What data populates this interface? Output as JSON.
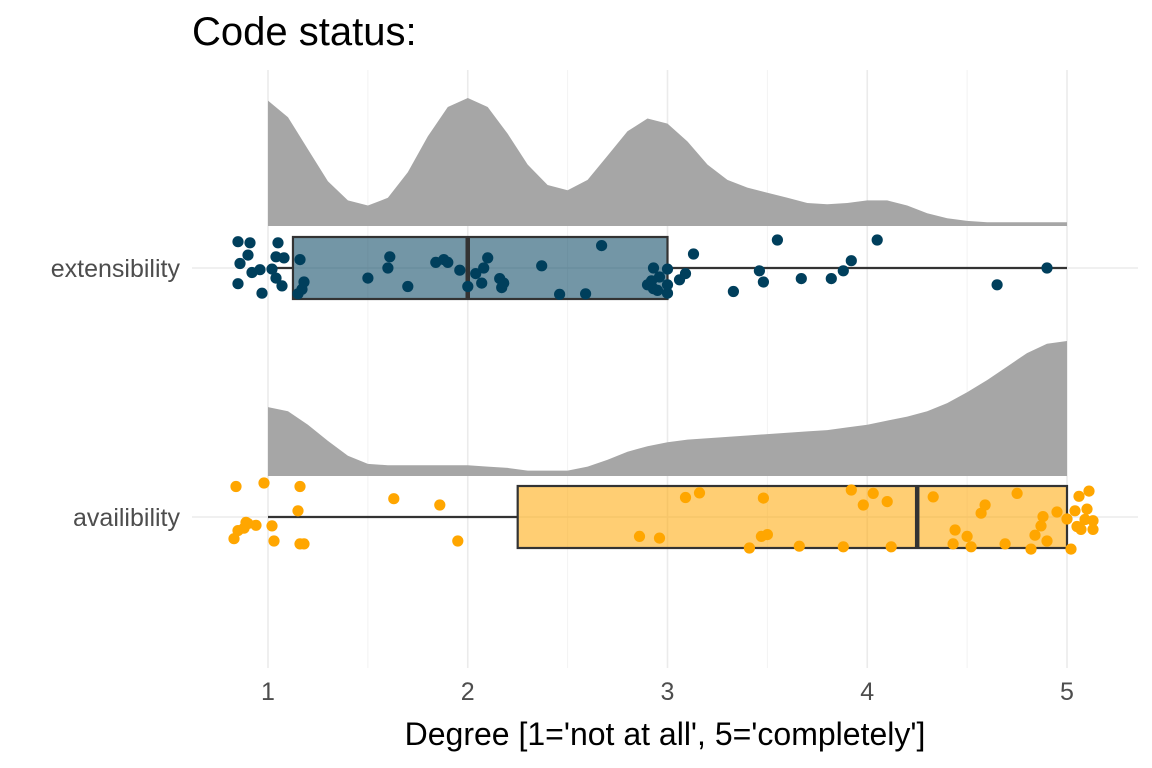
{
  "chart_data": {
    "type": "raincloud",
    "title": "Code status:",
    "xlabel": "Degree [1='not at all', 5='completely']",
    "ylabel": "",
    "xlim": [
      0.6,
      5.35
    ],
    "x_ticks": [
      1,
      2,
      3,
      4,
      5
    ],
    "grid": true,
    "legend": "none",
    "categories": [
      "extensibility",
      "availibility"
    ],
    "series": [
      {
        "name": "extensibility",
        "color": "#003f5c",
        "box": {
          "min": 1.0,
          "q1": 1.125,
          "median": 2.0,
          "q3": 3.0,
          "max": 5.0
        },
        "density": {
          "x": [
            1.0,
            1.1,
            1.2,
            1.3,
            1.4,
            1.5,
            1.6,
            1.7,
            1.8,
            1.9,
            2.0,
            2.1,
            2.2,
            2.3,
            2.4,
            2.5,
            2.6,
            2.7,
            2.8,
            2.9,
            3.0,
            3.1,
            3.2,
            3.3,
            3.4,
            3.5,
            3.6,
            3.7,
            3.8,
            3.9,
            4.0,
            4.1,
            4.2,
            4.3,
            4.4,
            4.5,
            4.6,
            4.7,
            4.8,
            4.9,
            5.0
          ],
          "y": [
            0.98,
            0.85,
            0.6,
            0.35,
            0.2,
            0.16,
            0.22,
            0.42,
            0.7,
            0.93,
            1.0,
            0.93,
            0.72,
            0.48,
            0.32,
            0.28,
            0.36,
            0.55,
            0.74,
            0.84,
            0.8,
            0.66,
            0.48,
            0.36,
            0.3,
            0.26,
            0.22,
            0.18,
            0.17,
            0.18,
            0.2,
            0.2,
            0.16,
            0.1,
            0.06,
            0.04,
            0.03,
            0.03,
            0.03,
            0.03,
            0.03
          ]
        },
        "points": [
          [
            0.85,
            0.03
          ],
          [
            0.85,
            0.78
          ],
          [
            0.86,
            0.42
          ],
          [
            0.9,
            0.27
          ],
          [
            0.91,
            0.05
          ],
          [
            0.92,
            0.58
          ],
          [
            0.96,
            0.53
          ],
          [
            0.97,
            0.95
          ],
          [
            1.02,
            0.52
          ],
          [
            1.04,
            0.68
          ],
          [
            1.05,
            0.05
          ],
          [
            1.07,
            0.82
          ],
          [
            1.04,
            0.3
          ],
          [
            1.08,
            0.32
          ],
          [
            1.15,
            0.96
          ],
          [
            1.17,
            0.88
          ],
          [
            1.18,
            0.75
          ],
          [
            1.16,
            0.35
          ],
          [
            1.5,
            0.68
          ],
          [
            1.6,
            0.5
          ],
          [
            1.61,
            0.3
          ],
          [
            1.7,
            0.83
          ],
          [
            1.84,
            0.4
          ],
          [
            1.88,
            0.35
          ],
          [
            1.9,
            0.4
          ],
          [
            1.96,
            0.54
          ],
          [
            2.0,
            0.83
          ],
          [
            2.04,
            0.6
          ],
          [
            2.07,
            0.77
          ],
          [
            2.08,
            0.5
          ],
          [
            2.1,
            0.32
          ],
          [
            2.16,
            0.69
          ],
          [
            2.17,
            0.85
          ],
          [
            2.18,
            0.77
          ],
          [
            2.37,
            0.46
          ],
          [
            2.46,
            0.97
          ],
          [
            2.59,
            0.96
          ],
          [
            2.67,
            0.1
          ],
          [
            2.9,
            0.8
          ],
          [
            2.92,
            0.73
          ],
          [
            2.93,
            0.87
          ],
          [
            2.95,
            0.9
          ],
          [
            2.93,
            0.5
          ],
          [
            2.96,
            0.66
          ],
          [
            3.0,
            0.95
          ],
          [
            3.0,
            0.8
          ],
          [
            3.0,
            0.52
          ],
          [
            3.06,
            0.71
          ],
          [
            3.09,
            0.6
          ],
          [
            3.13,
            0.25
          ],
          [
            3.33,
            0.92
          ],
          [
            3.46,
            0.55
          ],
          [
            3.48,
            0.75
          ],
          [
            3.55,
            0.0
          ],
          [
            3.67,
            0.69
          ],
          [
            3.82,
            0.69
          ],
          [
            3.88,
            0.55
          ],
          [
            3.92,
            0.37
          ],
          [
            4.05,
            0.0
          ],
          [
            4.65,
            0.8
          ],
          [
            4.9,
            0.5
          ]
        ]
      },
      {
        "name": "availibility",
        "color": "#ffa600",
        "box": {
          "min": 1.0,
          "q1": 2.25,
          "median": 4.25,
          "q3": 5.0,
          "max": 5.0
        },
        "density": {
          "x": [
            1.0,
            1.1,
            1.2,
            1.3,
            1.4,
            1.5,
            1.6,
            1.7,
            1.8,
            1.9,
            2.0,
            2.1,
            2.2,
            2.3,
            2.4,
            2.5,
            2.6,
            2.7,
            2.8,
            2.9,
            3.0,
            3.1,
            3.2,
            3.3,
            3.4,
            3.5,
            3.6,
            3.7,
            3.8,
            3.9,
            4.0,
            4.1,
            4.2,
            4.3,
            4.4,
            4.5,
            4.6,
            4.7,
            4.8,
            4.9,
            5.0
          ],
          "y": [
            0.51,
            0.48,
            0.38,
            0.26,
            0.15,
            0.09,
            0.08,
            0.08,
            0.08,
            0.08,
            0.08,
            0.07,
            0.06,
            0.04,
            0.04,
            0.04,
            0.07,
            0.12,
            0.18,
            0.22,
            0.25,
            0.27,
            0.28,
            0.29,
            0.3,
            0.31,
            0.32,
            0.33,
            0.34,
            0.36,
            0.38,
            0.41,
            0.44,
            0.48,
            0.54,
            0.62,
            0.71,
            0.81,
            0.91,
            0.98,
            1.0
          ]
        },
        "points": [
          [
            0.83,
            0.96
          ],
          [
            0.84,
            0.06
          ],
          [
            0.85,
            0.82
          ],
          [
            0.88,
            0.78
          ],
          [
            0.89,
            0.68
          ],
          [
            0.9,
            0.7
          ],
          [
            0.94,
            0.73
          ],
          [
            0.98,
            0.0
          ],
          [
            1.02,
            0.74
          ],
          [
            1.03,
            1.0
          ],
          [
            1.15,
            0.48
          ],
          [
            1.16,
            1.05
          ],
          [
            1.16,
            0.06
          ],
          [
            1.18,
            1.05
          ],
          [
            1.63,
            0.27
          ],
          [
            1.86,
            0.38
          ],
          [
            1.95,
            1.0
          ],
          [
            2.86,
            0.92
          ],
          [
            2.96,
            0.95
          ],
          [
            3.09,
            0.25
          ],
          [
            3.16,
            0.17
          ],
          [
            3.41,
            1.12
          ],
          [
            3.47,
            0.92
          ],
          [
            3.48,
            0.26
          ],
          [
            3.5,
            0.89
          ],
          [
            3.66,
            1.09
          ],
          [
            3.88,
            1.1
          ],
          [
            3.92,
            0.12
          ],
          [
            3.98,
            0.38
          ],
          [
            4.03,
            0.18
          ],
          [
            4.1,
            0.32
          ],
          [
            4.12,
            1.1
          ],
          [
            4.33,
            0.24
          ],
          [
            4.43,
            1.05
          ],
          [
            4.44,
            0.81
          ],
          [
            4.5,
            0.92
          ],
          [
            4.52,
            1.1
          ],
          [
            4.57,
            0.52
          ],
          [
            4.59,
            0.38
          ],
          [
            4.69,
            1.05
          ],
          [
            4.75,
            0.18
          ],
          [
            4.82,
            1.14
          ],
          [
            4.84,
            0.9
          ],
          [
            4.87,
            0.74
          ],
          [
            4.88,
            0.58
          ],
          [
            4.9,
            1.0
          ],
          [
            4.95,
            0.5
          ],
          [
            5.0,
            0.62
          ],
          [
            5.02,
            1.14
          ],
          [
            5.04,
            0.48
          ],
          [
            5.05,
            0.75
          ],
          [
            5.06,
            0.23
          ],
          [
            5.07,
            0.8
          ],
          [
            5.09,
            0.63
          ],
          [
            5.1,
            0.45
          ],
          [
            5.11,
            0.14
          ],
          [
            5.13,
            0.8
          ],
          [
            5.13,
            0.65
          ]
        ]
      }
    ]
  }
}
